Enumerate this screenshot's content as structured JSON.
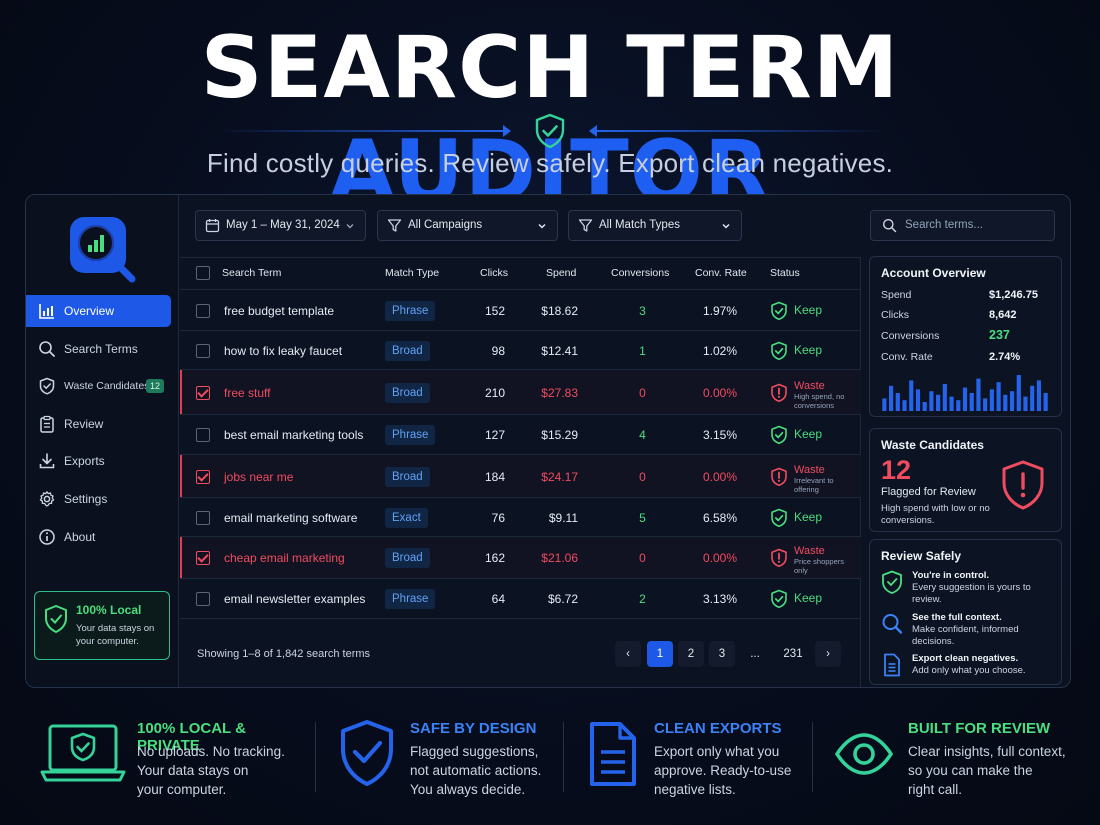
{
  "hero": {
    "title_main": "SEARCH TERM",
    "title_accent": "AUDITOR",
    "tagline": "Find costly queries. Review safely. Export clean negatives."
  },
  "colors": {
    "accent_blue": "#1d59e6",
    "keep_green": "#4ade80",
    "waste_red": "#ef4c5f",
    "background": "#070d1d"
  },
  "sidebar": {
    "items": [
      {
        "label": "Overview",
        "icon": "bar-chart-icon",
        "active": true
      },
      {
        "label": "Search Terms",
        "icon": "search-icon"
      },
      {
        "label": "Waste Candidates",
        "icon": "shield-check-icon",
        "badge": "12"
      },
      {
        "label": "Review",
        "icon": "clipboard-icon"
      },
      {
        "label": "Exports",
        "icon": "download-icon"
      },
      {
        "label": "Settings",
        "icon": "gear-icon"
      },
      {
        "label": "About",
        "icon": "info-icon"
      }
    ],
    "local_card": {
      "title": "100% Local",
      "text": "Your data stays on your computer."
    }
  },
  "toolbar": {
    "date_range": "May 1 – May 31, 2024",
    "campaigns": "All Campaigns",
    "match_types": "All Match Types",
    "search_placeholder": "Search terms..."
  },
  "table": {
    "columns": [
      "Search Term",
      "Match Type",
      "Clicks",
      "Spend",
      "Conversions",
      "Conv. Rate",
      "Status"
    ],
    "rows": [
      {
        "term": "free budget template",
        "match": "Phrase",
        "clicks": "152",
        "spend": "$18.62",
        "conv": "3",
        "rate": "1.97%",
        "status": "Keep",
        "note": "",
        "checked": false
      },
      {
        "term": "how to fix leaky faucet",
        "match": "Broad",
        "clicks": "98",
        "spend": "$12.41",
        "conv": "1",
        "rate": "1.02%",
        "status": "Keep",
        "note": "",
        "checked": false
      },
      {
        "term": "free stuff",
        "match": "Broad",
        "clicks": "210",
        "spend": "$27.83",
        "conv": "0",
        "rate": "0.00%",
        "status": "Waste",
        "note": "High spend, no conversions",
        "checked": true
      },
      {
        "term": "best email marketing tools",
        "match": "Phrase",
        "clicks": "127",
        "spend": "$15.29",
        "conv": "4",
        "rate": "3.15%",
        "status": "Keep",
        "note": "",
        "checked": false
      },
      {
        "term": "jobs near me",
        "match": "Broad",
        "clicks": "184",
        "spend": "$24.17",
        "conv": "0",
        "rate": "0.00%",
        "status": "Waste",
        "note": "Irrelevant to offering",
        "checked": true
      },
      {
        "term": "email marketing software",
        "match": "Exact",
        "clicks": "76",
        "spend": "$9.11",
        "conv": "5",
        "rate": "6.58%",
        "status": "Keep",
        "note": "",
        "checked": false
      },
      {
        "term": "cheap email marketing",
        "match": "Broad",
        "clicks": "162",
        "spend": "$21.06",
        "conv": "0",
        "rate": "0.00%",
        "status": "Waste",
        "note": "Price shoppers only",
        "checked": true
      },
      {
        "term": "email newsletter examples",
        "match": "Phrase",
        "clicks": "64",
        "spend": "$6.72",
        "conv": "2",
        "rate": "3.13%",
        "status": "Keep",
        "note": "",
        "checked": false
      }
    ],
    "showing": "Showing 1–8 of 1,842 search terms",
    "pagination": {
      "prev": "‹",
      "next": "›",
      "pages": [
        "1",
        "2",
        "3",
        "...",
        "231"
      ],
      "current": "1"
    }
  },
  "account_overview": {
    "title": "Account Overview",
    "stats": [
      {
        "label": "Spend",
        "value": "$1,246.75"
      },
      {
        "label": "Clicks",
        "value": "8,642"
      },
      {
        "label": "Conversions",
        "value": "237"
      },
      {
        "label": "Conv. Rate",
        "value": "2.74%"
      }
    ],
    "sparkline": [
      0.35,
      0.7,
      0.5,
      0.3,
      0.85,
      0.6,
      0.25,
      0.55,
      0.45,
      0.75,
      0.4,
      0.3,
      0.65,
      0.5,
      0.9,
      0.35,
      0.6,
      0.8,
      0.45,
      0.55,
      1.0,
      0.4,
      0.7,
      0.85,
      0.5
    ]
  },
  "waste_candidates": {
    "title": "Waste Candidates",
    "count": "12",
    "sub": "Flagged for Review",
    "desc": "High spend with low or no conversions."
  },
  "review_safely": {
    "title": "Review Safely",
    "items": [
      {
        "icon": "shield-check-icon",
        "head": "You're in control.",
        "desc": "Every suggestion is yours to review."
      },
      {
        "icon": "search-icon",
        "head": "See the full context.",
        "desc": "Make confident, informed decisions."
      },
      {
        "icon": "document-icon",
        "head": "Export clean negatives.",
        "desc": "Add only what you choose."
      }
    ]
  },
  "features": [
    {
      "icon": "laptop-shield-icon",
      "head": "100% LOCAL & PRIVATE",
      "desc": [
        "No uploads. No tracking.",
        "Your data stays on",
        "your computer."
      ],
      "color": "#4ade80"
    },
    {
      "icon": "shield-check-icon",
      "head": "SAFE BY DESIGN",
      "desc": [
        "Flagged suggestions,",
        "not automatic actions.",
        "You always decide."
      ],
      "color": "#3b82f6"
    },
    {
      "icon": "document-icon",
      "head": "CLEAN EXPORTS",
      "desc": [
        "Export only what you",
        "approve. Ready-to-use",
        "negative lists."
      ],
      "color": "#3b82f6"
    },
    {
      "icon": "eye-icon",
      "head": "BUILT FOR REVIEW",
      "desc": [
        "Clear insights, full context,",
        "so you can make the",
        "right call."
      ],
      "color": "#4ade80"
    }
  ]
}
